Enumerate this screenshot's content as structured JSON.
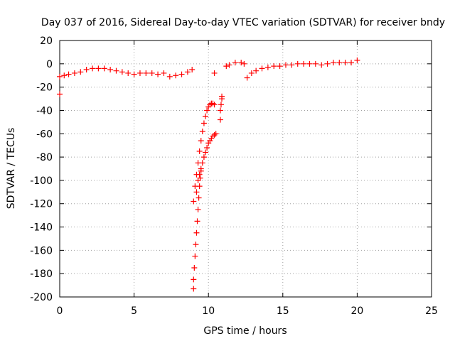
{
  "chart_data": {
    "type": "scatter",
    "title": "Day 037 of 2016, Sidereal Day-to-day VTEC variation (SDTVAR) for receiver bndy",
    "xlabel": "GPS time / hours",
    "ylabel": "SDTVAR / TECUs",
    "xlim": [
      0,
      25
    ],
    "ylim": [
      -200,
      20
    ],
    "xticks": [
      "0",
      "5",
      "10",
      "15",
      "20",
      "25"
    ],
    "yticks": [
      "20",
      "0",
      "-20",
      "-40",
      "-60",
      "-80",
      "-100",
      "-120",
      "-140",
      "-160",
      "-180",
      "-200"
    ],
    "grid": true,
    "marker": "plus",
    "color": "#ff0000",
    "series": [
      {
        "name": "",
        "x": [
          0.0,
          0.3,
          0.6,
          1.0,
          1.4,
          1.8,
          2.2,
          2.6,
          3.0,
          3.4,
          3.8,
          4.2,
          4.6,
          5.0,
          5.4,
          5.8,
          6.2,
          6.6,
          7.0,
          7.4,
          7.8,
          8.2,
          8.6,
          8.9,
          10.4,
          11.2,
          11.4,
          11.8,
          12.2,
          12.4,
          12.6,
          12.9,
          13.2,
          13.6,
          14.0,
          14.4,
          14.8,
          15.2,
          15.6,
          16.0,
          16.4,
          16.8,
          17.2,
          17.6,
          18.0,
          18.4,
          18.8,
          19.2,
          19.6,
          20.0,
          9.0,
          9.1,
          9.2,
          9.3,
          9.4,
          9.5,
          9.6,
          9.7,
          9.8,
          9.9,
          10.0,
          10.1,
          10.2,
          10.3,
          10.4,
          9.2,
          9.3,
          9.4,
          9.5,
          9.6,
          9.7,
          9.8,
          9.9,
          10.0,
          10.1,
          10.2,
          10.3,
          10.4,
          10.5,
          9.0,
          9.0,
          9.05,
          9.1,
          9.15,
          9.2,
          9.25,
          9.3,
          9.35,
          9.4,
          9.45,
          9.5,
          10.8,
          10.8,
          10.85,
          10.9,
          10.9,
          0.0
        ],
        "values": [
          -11,
          -10,
          -9,
          -8,
          -7,
          -5,
          -4,
          -4,
          -4,
          -5,
          -6,
          -7,
          -8,
          -9,
          -8,
          -8,
          -8,
          -9,
          -8,
          -11,
          -10,
          -9,
          -7,
          -5,
          -8,
          -2,
          -1,
          1,
          1,
          0,
          -12,
          -8,
          -6,
          -4,
          -3,
          -2,
          -2,
          -1,
          -1,
          0,
          0,
          0,
          0,
          -1,
          0,
          1,
          1,
          1,
          1,
          3,
          -118,
          -105,
          -95,
          -85,
          -75,
          -66,
          -58,
          -51,
          -45,
          -40,
          -37,
          -35,
          -34,
          -34,
          -35,
          -110,
          -100,
          -95,
          -90,
          -85,
          -80,
          -76,
          -72,
          -68,
          -66,
          -64,
          -62,
          -61,
          -60,
          -193,
          -185,
          -175,
          -165,
          -155,
          -145,
          -135,
          -125,
          -115,
          -105,
          -98,
          -92,
          -48,
          -40,
          -35,
          -30,
          -28,
          -26
        ]
      }
    ]
  }
}
